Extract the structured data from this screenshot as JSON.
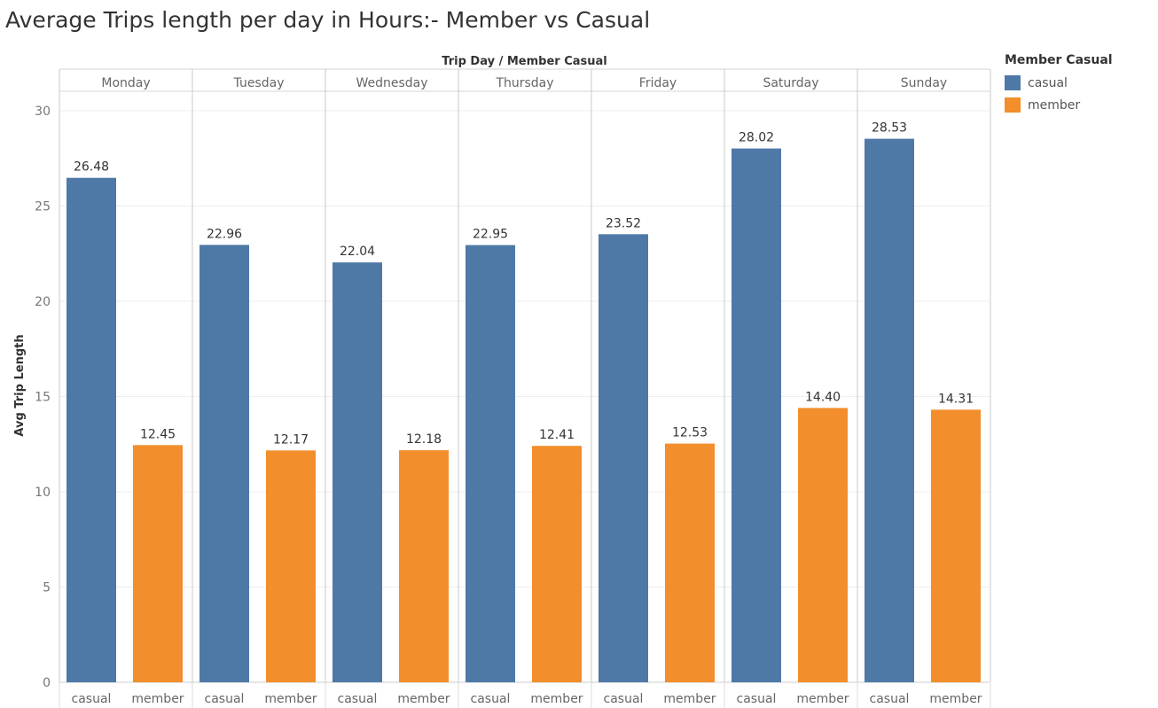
{
  "chart_data": {
    "type": "bar",
    "title": "Average Trips length per day in Hours:- Member vs Casual",
    "header": "Trip Day  /  Member Casual",
    "ylabel": "Avg Trip Length",
    "ylim": [
      0,
      30
    ],
    "yticks": [
      "0",
      "5",
      "10",
      "15",
      "20",
      "25",
      "30"
    ],
    "categories": [
      "Monday",
      "Tuesday",
      "Wednesday",
      "Thursday",
      "Friday",
      "Saturday",
      "Sunday"
    ],
    "subcategories": [
      "casual",
      "member"
    ],
    "series": [
      {
        "name": "casual",
        "color": "#4e79a7",
        "values": [
          26.48,
          22.96,
          22.04,
          22.95,
          23.52,
          28.02,
          28.53
        ],
        "labels": [
          "26.48",
          "22.96",
          "22.04",
          "22.95",
          "23.52",
          "28.02",
          "28.53"
        ]
      },
      {
        "name": "member",
        "color": "#f28e2b",
        "values": [
          12.45,
          12.17,
          12.18,
          12.41,
          12.53,
          14.4,
          14.31
        ],
        "labels": [
          "12.45",
          "12.17",
          "12.18",
          "12.41",
          "12.53",
          "14.40",
          "14.31"
        ]
      }
    ],
    "legend": {
      "title": "Member Casual",
      "placement": "top-right"
    },
    "grid": true
  }
}
